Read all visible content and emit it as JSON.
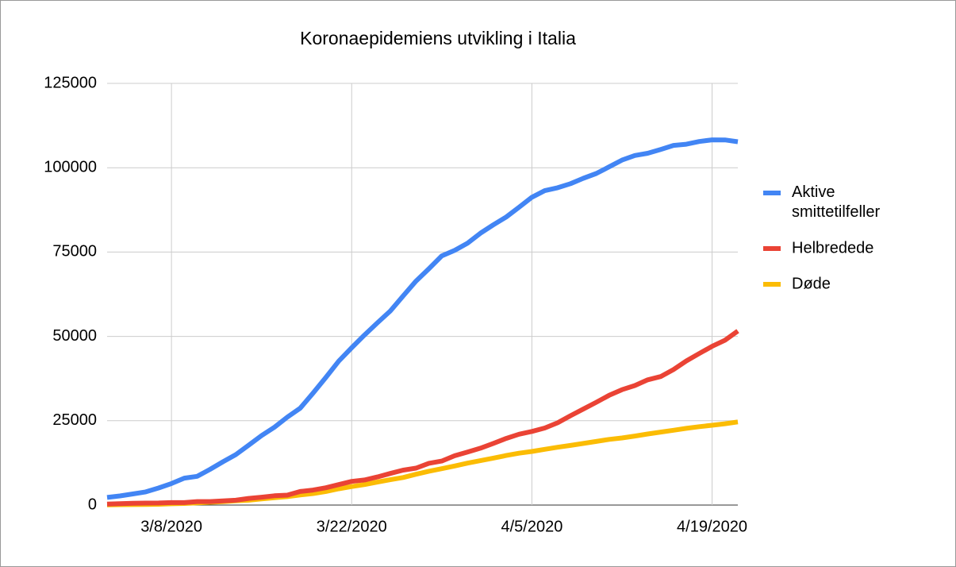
{
  "chart_data": {
    "type": "line",
    "title": "Koronaepidemiens utvikling i Italia",
    "x": [
      "3/3/2020",
      "3/4/2020",
      "3/5/2020",
      "3/6/2020",
      "3/7/2020",
      "3/8/2020",
      "3/9/2020",
      "3/10/2020",
      "3/11/2020",
      "3/12/2020",
      "3/13/2020",
      "3/14/2020",
      "3/15/2020",
      "3/16/2020",
      "3/17/2020",
      "3/18/2020",
      "3/19/2020",
      "3/20/2020",
      "3/21/2020",
      "3/22/2020",
      "3/23/2020",
      "3/24/2020",
      "3/25/2020",
      "3/26/2020",
      "3/27/2020",
      "3/28/2020",
      "3/29/2020",
      "3/30/2020",
      "3/31/2020",
      "4/1/2020",
      "4/2/2020",
      "4/3/2020",
      "4/4/2020",
      "4/5/2020",
      "4/6/2020",
      "4/7/2020",
      "4/8/2020",
      "4/9/2020",
      "4/10/2020",
      "4/11/2020",
      "4/12/2020",
      "4/13/2020",
      "4/14/2020",
      "4/15/2020",
      "4/16/2020",
      "4/17/2020",
      "4/18/2020",
      "4/19/2020",
      "4/20/2020",
      "4/21/2020"
    ],
    "series": [
      {
        "name": "Aktive smittetilfeller",
        "color": "#4285f4",
        "values": [
          2263,
          2706,
          3296,
          3916,
          5061,
          6387,
          7985,
          8514,
          10590,
          12839,
          14955,
          17750,
          20603,
          23073,
          26062,
          28710,
          33190,
          37860,
          42681,
          46638,
          50418,
          54030,
          57521,
          62013,
          66414,
          70065,
          73880,
          75528,
          77635,
          80572,
          83049,
          85388,
          88274,
          91246,
          93187,
          94067,
          95262,
          96877,
          98273,
          100269,
          102253,
          103616,
          104291,
          105418,
          106607,
          106962,
          107771,
          108257,
          108237,
          107709
        ]
      },
      {
        "name": "Helbredede",
        "color": "#ea4335",
        "values": [
          276,
          414,
          523,
          589,
          622,
          724,
          724,
          1045,
          1045,
          1258,
          1439,
          1966,
          2335,
          2749,
          2941,
          4025,
          4440,
          5129,
          6072,
          7024,
          7432,
          8326,
          9362,
          10361,
          10950,
          12384,
          13030,
          14620,
          15729,
          16847,
          18278,
          19758,
          20996,
          21815,
          22837,
          24392,
          26491,
          28470,
          30455,
          32534,
          34211,
          35435,
          37130,
          38092,
          40164,
          42727,
          44927,
          47055,
          48877,
          51600
        ]
      },
      {
        "name": "Døde",
        "color": "#fbbc04",
        "values": [
          79,
          107,
          148,
          197,
          233,
          366,
          463,
          631,
          827,
          1016,
          1266,
          1441,
          1809,
          2158,
          2503,
          2978,
          3405,
          4032,
          4825,
          5476,
          6077,
          6820,
          7503,
          8165,
          9134,
          10023,
          10779,
          11591,
          12428,
          13155,
          13915,
          14681,
          15362,
          15887,
          16523,
          17127,
          17669,
          18279,
          18849,
          19468,
          19899,
          20465,
          21067,
          21645,
          22170,
          22745,
          23227,
          23660,
          24114,
          24648
        ]
      }
    ],
    "xlim": [
      "3/3/2020",
      "4/21/2020"
    ],
    "xticks": [
      "3/8/2020",
      "3/22/2020",
      "4/5/2020",
      "4/19/2020"
    ],
    "ylim": [
      0,
      125000
    ],
    "yticks": [
      0,
      25000,
      50000,
      75000,
      100000,
      125000
    ],
    "grid": true,
    "legend": "right"
  }
}
